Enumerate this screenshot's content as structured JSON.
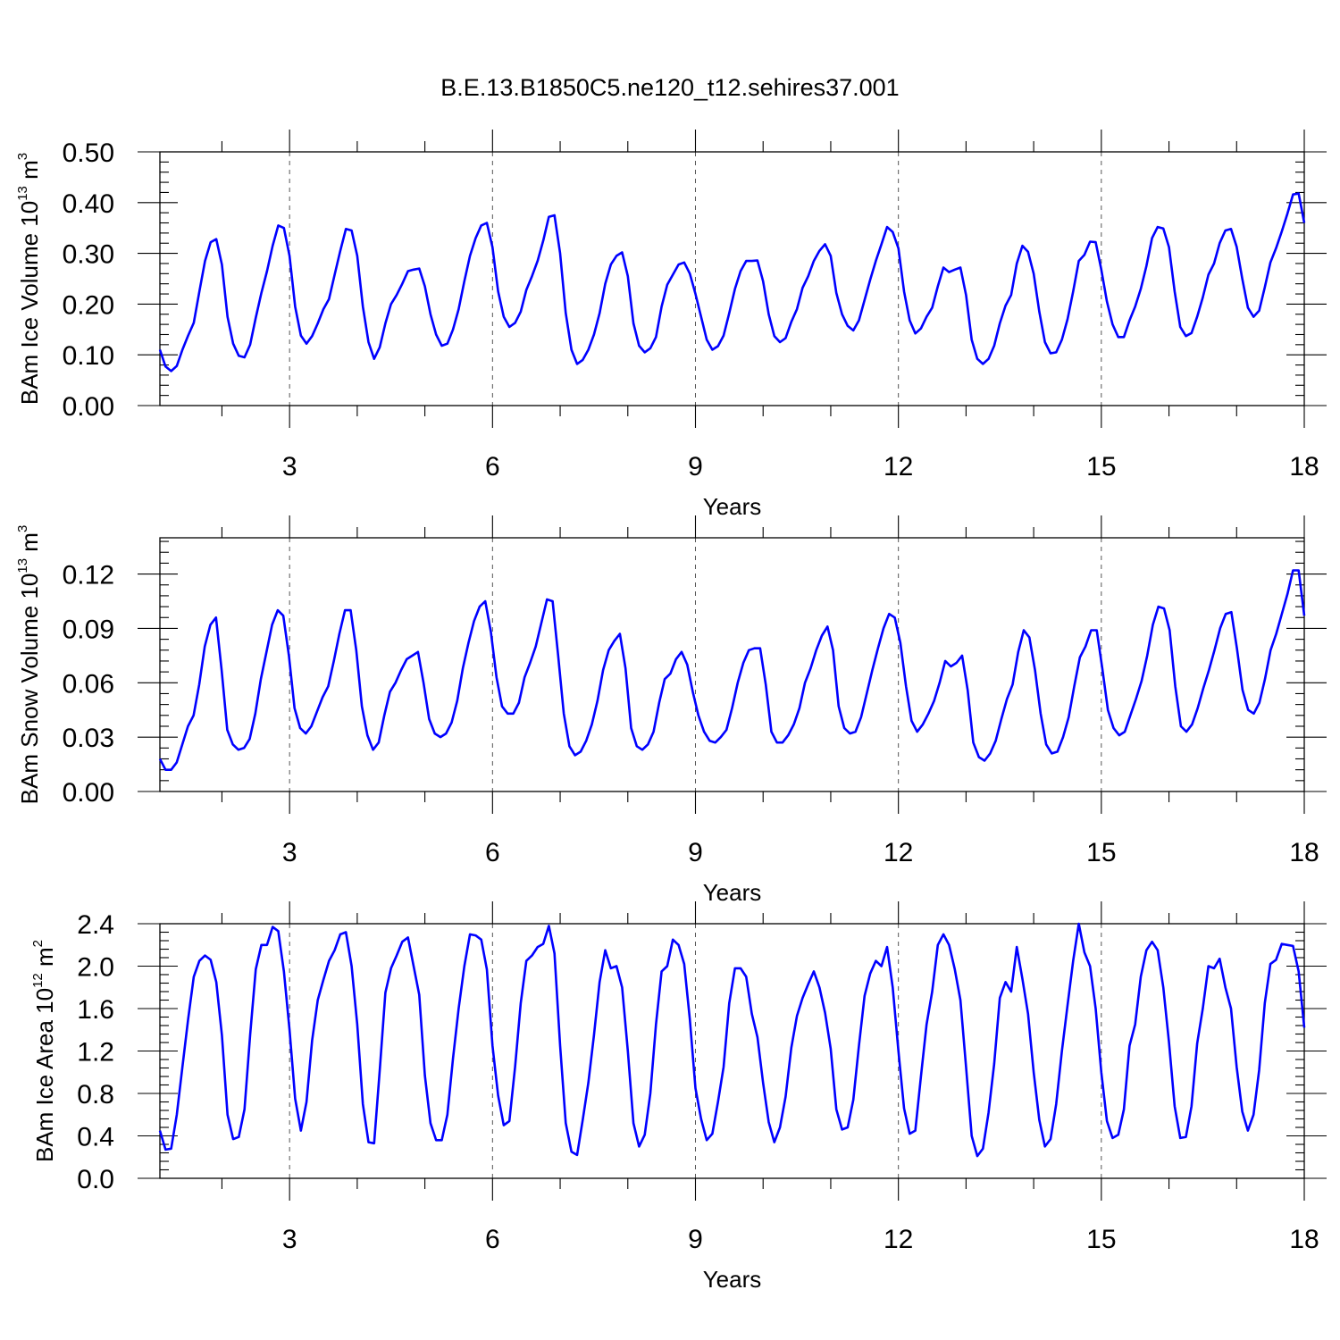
{
  "title": "B.E.13.B1850C5.ne120_t12.sehires37.001",
  "chart_data": [
    {
      "type": "line",
      "name": "ice-volume",
      "ylabel_prefix": "BAm Ice Volume 10",
      "ylabel_exp": "13",
      "ylabel_unit": "m",
      "ylabel_unit_exp": "3",
      "xlabel": "Years",
      "xlim": [
        1.083,
        18.0
      ],
      "ylim": [
        0,
        0.5
      ],
      "xticks": [
        3,
        6,
        9,
        12,
        15,
        18
      ],
      "xtick_labels": [
        "3",
        "6",
        "9",
        "12",
        "15",
        "18"
      ],
      "yticks": [
        0,
        0.1,
        0.2,
        0.3,
        0.4,
        0.5
      ],
      "ytick_labels": [
        "0.00",
        "0.10",
        "0.20",
        "0.30",
        "0.40",
        "0.50"
      ],
      "values": [
        0.11,
        0.077,
        0.068,
        0.078,
        0.11,
        0.138,
        0.163,
        0.225,
        0.285,
        0.322,
        0.328,
        0.278,
        0.175,
        0.122,
        0.098,
        0.095,
        0.12,
        0.173,
        0.222,
        0.265,
        0.315,
        0.355,
        0.35,
        0.295,
        0.195,
        0.138,
        0.122,
        0.137,
        0.162,
        0.19,
        0.21,
        0.258,
        0.305,
        0.348,
        0.345,
        0.295,
        0.195,
        0.125,
        0.092,
        0.115,
        0.162,
        0.2,
        0.218,
        0.24,
        0.265,
        0.268,
        0.27,
        0.235,
        0.18,
        0.14,
        0.118,
        0.122,
        0.15,
        0.19,
        0.245,
        0.295,
        0.33,
        0.355,
        0.36,
        0.312,
        0.225,
        0.175,
        0.155,
        0.163,
        0.185,
        0.228,
        0.255,
        0.285,
        0.325,
        0.372,
        0.375,
        0.3,
        0.182,
        0.11,
        0.082,
        0.09,
        0.11,
        0.14,
        0.182,
        0.24,
        0.278,
        0.295,
        0.302,
        0.255,
        0.162,
        0.118,
        0.105,
        0.113,
        0.135,
        0.195,
        0.238,
        0.258,
        0.278,
        0.282,
        0.26,
        0.22,
        0.175,
        0.13,
        0.11,
        0.117,
        0.138,
        0.182,
        0.23,
        0.265,
        0.285,
        0.285,
        0.286,
        0.245,
        0.18,
        0.137,
        0.125,
        0.133,
        0.165,
        0.19,
        0.232,
        0.255,
        0.285,
        0.305,
        0.318,
        0.295,
        0.222,
        0.18,
        0.157,
        0.148,
        0.168,
        0.208,
        0.248,
        0.285,
        0.318,
        0.352,
        0.342,
        0.31,
        0.225,
        0.168,
        0.142,
        0.152,
        0.175,
        0.193,
        0.235,
        0.272,
        0.263,
        0.268,
        0.272,
        0.218,
        0.13,
        0.092,
        0.082,
        0.092,
        0.118,
        0.162,
        0.197,
        0.218,
        0.28,
        0.315,
        0.303,
        0.26,
        0.185,
        0.125,
        0.103,
        0.105,
        0.13,
        0.17,
        0.225,
        0.285,
        0.297,
        0.323,
        0.322,
        0.268,
        0.205,
        0.16,
        0.135,
        0.135,
        0.168,
        0.195,
        0.23,
        0.275,
        0.33,
        0.352,
        0.349,
        0.312,
        0.225,
        0.155,
        0.137,
        0.143,
        0.175,
        0.213,
        0.258,
        0.28,
        0.32,
        0.345,
        0.348,
        0.313,
        0.25,
        0.193,
        0.175,
        0.187,
        0.233,
        0.282,
        0.31,
        0.343,
        0.378,
        0.416,
        0.418,
        0.36
      ]
    },
    {
      "type": "line",
      "name": "snow-volume",
      "ylabel_prefix": "BAm Snow Volume 10",
      "ylabel_exp": "13",
      "ylabel_unit": "m",
      "ylabel_unit_exp": "3",
      "xlabel": "Years",
      "xlim": [
        1.083,
        18.0
      ],
      "ylim": [
        0,
        0.14
      ],
      "xticks": [
        3,
        6,
        9,
        12,
        15,
        18
      ],
      "xtick_labels": [
        "3",
        "6",
        "9",
        "12",
        "15",
        "18"
      ],
      "yticks": [
        0,
        0.03,
        0.06,
        0.09,
        0.12
      ],
      "ytick_labels": [
        "0.00",
        "0.03",
        "0.06",
        "0.09",
        "0.12"
      ],
      "values": [
        0.018,
        0.012,
        0.012,
        0.016,
        0.026,
        0.036,
        0.042,
        0.059,
        0.08,
        0.092,
        0.096,
        0.067,
        0.034,
        0.026,
        0.023,
        0.024,
        0.029,
        0.043,
        0.062,
        0.077,
        0.092,
        0.1,
        0.097,
        0.075,
        0.046,
        0.035,
        0.032,
        0.036,
        0.044,
        0.052,
        0.058,
        0.072,
        0.087,
        0.1,
        0.1,
        0.078,
        0.047,
        0.031,
        0.023,
        0.027,
        0.042,
        0.055,
        0.06,
        0.067,
        0.073,
        0.075,
        0.077,
        0.06,
        0.04,
        0.032,
        0.03,
        0.032,
        0.038,
        0.05,
        0.068,
        0.082,
        0.094,
        0.102,
        0.105,
        0.088,
        0.063,
        0.047,
        0.043,
        0.043,
        0.049,
        0.063,
        0.071,
        0.08,
        0.093,
        0.106,
        0.105,
        0.075,
        0.043,
        0.025,
        0.02,
        0.022,
        0.028,
        0.037,
        0.05,
        0.067,
        0.078,
        0.083,
        0.087,
        0.068,
        0.035,
        0.025,
        0.023,
        0.026,
        0.033,
        0.049,
        0.062,
        0.065,
        0.073,
        0.077,
        0.07,
        0.055,
        0.042,
        0.033,
        0.028,
        0.027,
        0.03,
        0.034,
        0.046,
        0.06,
        0.071,
        0.078,
        0.079,
        0.079,
        0.059,
        0.033,
        0.027,
        0.027,
        0.031,
        0.037,
        0.046,
        0.06,
        0.068,
        0.078,
        0.086,
        0.091,
        0.078,
        0.047,
        0.035,
        0.032,
        0.033,
        0.041,
        0.054,
        0.067,
        0.079,
        0.09,
        0.098,
        0.096,
        0.082,
        0.058,
        0.039,
        0.033,
        0.037,
        0.043,
        0.05,
        0.06,
        0.072,
        0.069,
        0.071,
        0.075,
        0.056,
        0.027,
        0.019,
        0.017,
        0.021,
        0.028,
        0.04,
        0.051,
        0.059,
        0.077,
        0.089,
        0.085,
        0.067,
        0.043,
        0.026,
        0.021,
        0.022,
        0.03,
        0.041,
        0.058,
        0.074,
        0.08,
        0.089,
        0.089,
        0.068,
        0.045,
        0.035,
        0.031,
        0.033,
        0.042,
        0.051,
        0.061,
        0.075,
        0.092,
        0.102,
        0.101,
        0.089,
        0.058,
        0.036,
        0.033,
        0.037,
        0.046,
        0.057,
        0.067,
        0.078,
        0.09,
        0.098,
        0.099,
        0.079,
        0.056,
        0.045,
        0.043,
        0.049,
        0.062,
        0.078,
        0.087,
        0.098,
        0.109,
        0.122,
        0.122,
        0.097
      ]
    },
    {
      "type": "line",
      "name": "ice-area",
      "ylabel_prefix": "BAm Ice Area 10",
      "ylabel_exp": "12",
      "ylabel_unit": "m",
      "ylabel_unit_exp": "2",
      "xlabel": "Years",
      "xlim": [
        1.083,
        18.0
      ],
      "ylim": [
        0,
        2.4
      ],
      "xticks": [
        3,
        6,
        9,
        12,
        15,
        18
      ],
      "xtick_labels": [
        "3",
        "6",
        "9",
        "12",
        "15",
        "18"
      ],
      "yticks": [
        0,
        0.4,
        0.8,
        1.2,
        1.6,
        2.0,
        2.4
      ],
      "ytick_labels": [
        "0.0",
        "0.4",
        "0.8",
        "1.2",
        "1.6",
        "2.0",
        "2.4"
      ],
      "values": [
        0.45,
        0.27,
        0.28,
        0.6,
        1.05,
        1.5,
        1.9,
        2.05,
        2.1,
        2.06,
        1.85,
        1.35,
        0.6,
        0.37,
        0.39,
        0.65,
        1.35,
        1.97,
        2.2,
        2.2,
        2.37,
        2.33,
        1.95,
        1.4,
        0.75,
        0.45,
        0.72,
        1.3,
        1.68,
        1.87,
        2.05,
        2.15,
        2.3,
        2.32,
        2.0,
        1.45,
        0.7,
        0.34,
        0.33,
        1.02,
        1.75,
        1.98,
        2.1,
        2.23,
        2.27,
        2.0,
        1.73,
        0.97,
        0.52,
        0.36,
        0.36,
        0.6,
        1.13,
        1.6,
        2.0,
        2.3,
        2.29,
        2.25,
        1.97,
        1.25,
        0.78,
        0.5,
        0.54,
        1.05,
        1.65,
        2.05,
        2.1,
        2.18,
        2.21,
        2.38,
        2.12,
        1.25,
        0.52,
        0.25,
        0.22,
        0.55,
        0.9,
        1.35,
        1.85,
        2.15,
        1.98,
        2.0,
        1.8,
        1.2,
        0.52,
        0.3,
        0.41,
        0.8,
        1.45,
        1.95,
        2.0,
        2.25,
        2.2,
        2.02,
        1.5,
        0.85,
        0.56,
        0.36,
        0.42,
        0.72,
        1.05,
        1.65,
        1.98,
        1.98,
        1.9,
        1.55,
        1.33,
        0.9,
        0.53,
        0.34,
        0.48,
        0.77,
        1.23,
        1.53,
        1.7,
        1.83,
        1.95,
        1.8,
        1.56,
        1.22,
        0.65,
        0.46,
        0.48,
        0.74,
        1.25,
        1.72,
        1.93,
        2.05,
        2.0,
        2.18,
        1.8,
        1.2,
        0.66,
        0.42,
        0.45,
        0.96,
        1.45,
        1.76,
        2.2,
        2.3,
        2.2,
        1.97,
        1.68,
        1.05,
        0.4,
        0.21,
        0.28,
        0.62,
        1.08,
        1.7,
        1.85,
        1.76,
        2.18,
        1.88,
        1.55,
        1.0,
        0.55,
        0.3,
        0.37,
        0.7,
        1.2,
        1.63,
        2.05,
        2.4,
        2.13,
        2.0,
        1.6,
        1.0,
        0.54,
        0.38,
        0.41,
        0.65,
        1.25,
        1.45,
        1.9,
        2.15,
        2.23,
        2.15,
        1.8,
        1.28,
        0.68,
        0.38,
        0.39,
        0.68,
        1.27,
        1.6,
        2.0,
        1.98,
        2.07,
        1.8,
        1.6,
        1.05,
        0.63,
        0.45,
        0.6,
        1.02,
        1.65,
        2.02,
        2.06,
        2.21,
        2.2,
        2.19,
        1.95,
        1.42
      ]
    }
  ]
}
